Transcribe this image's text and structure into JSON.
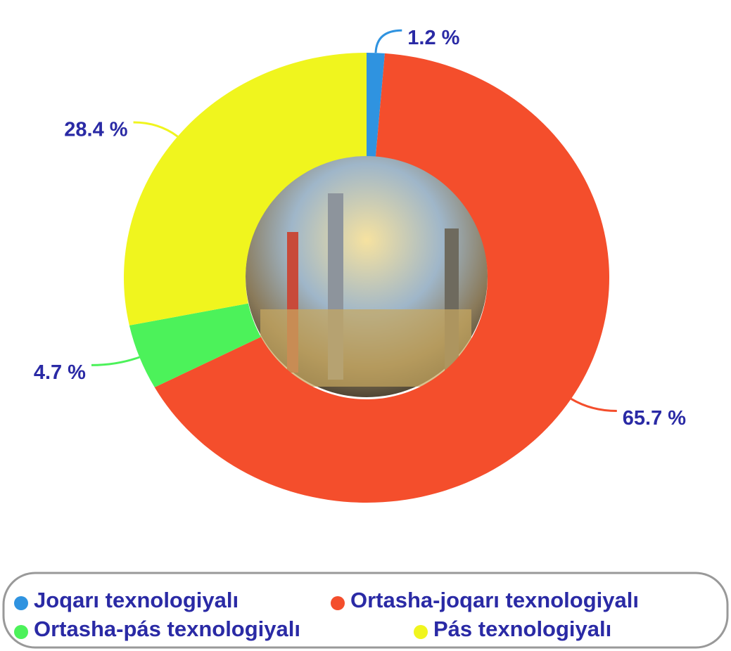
{
  "chart_data": {
    "type": "donut",
    "categories": [
      "Joqarı texnologiyalı",
      "Ortasha-joqarı texnologiyalı",
      "Ortasha-pás texnologiyalı",
      "Pás texnologiyalı"
    ],
    "values": [
      1.2,
      65.7,
      4.7,
      28.4
    ],
    "value_labels": [
      "1.2 %",
      "65.7 %",
      "4.7 %",
      "28.4 %"
    ],
    "colors": [
      "#2f93e0",
      "#f44e2c",
      "#4cf25a",
      "#f0f51e"
    ]
  }
}
